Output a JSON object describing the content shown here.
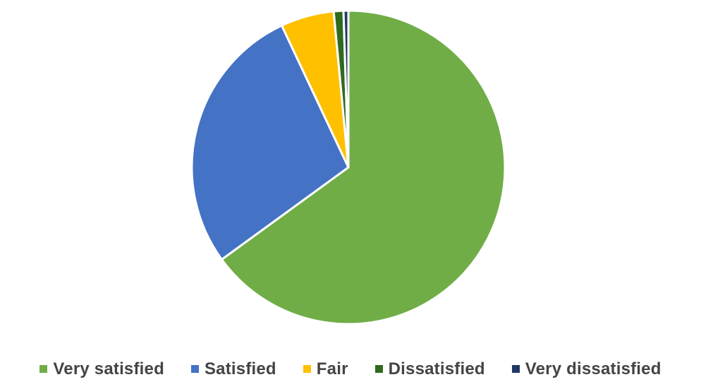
{
  "chart_data": {
    "type": "pie",
    "title": "",
    "categories": [
      "Very satisfied",
      "Satisfied",
      "Fair",
      "Dissatisfied",
      "Very dissatisfied"
    ],
    "values": [
      65.0,
      28.0,
      5.5,
      1.0,
      0.5
    ],
    "colors": [
      "#70AD47",
      "#4472C4",
      "#FFC000",
      "#2F6B1F",
      "#203864"
    ],
    "legend_position": "bottom",
    "start_angle": "12 o'clock, clockwise",
    "slice_border_color": "#ffffff"
  }
}
